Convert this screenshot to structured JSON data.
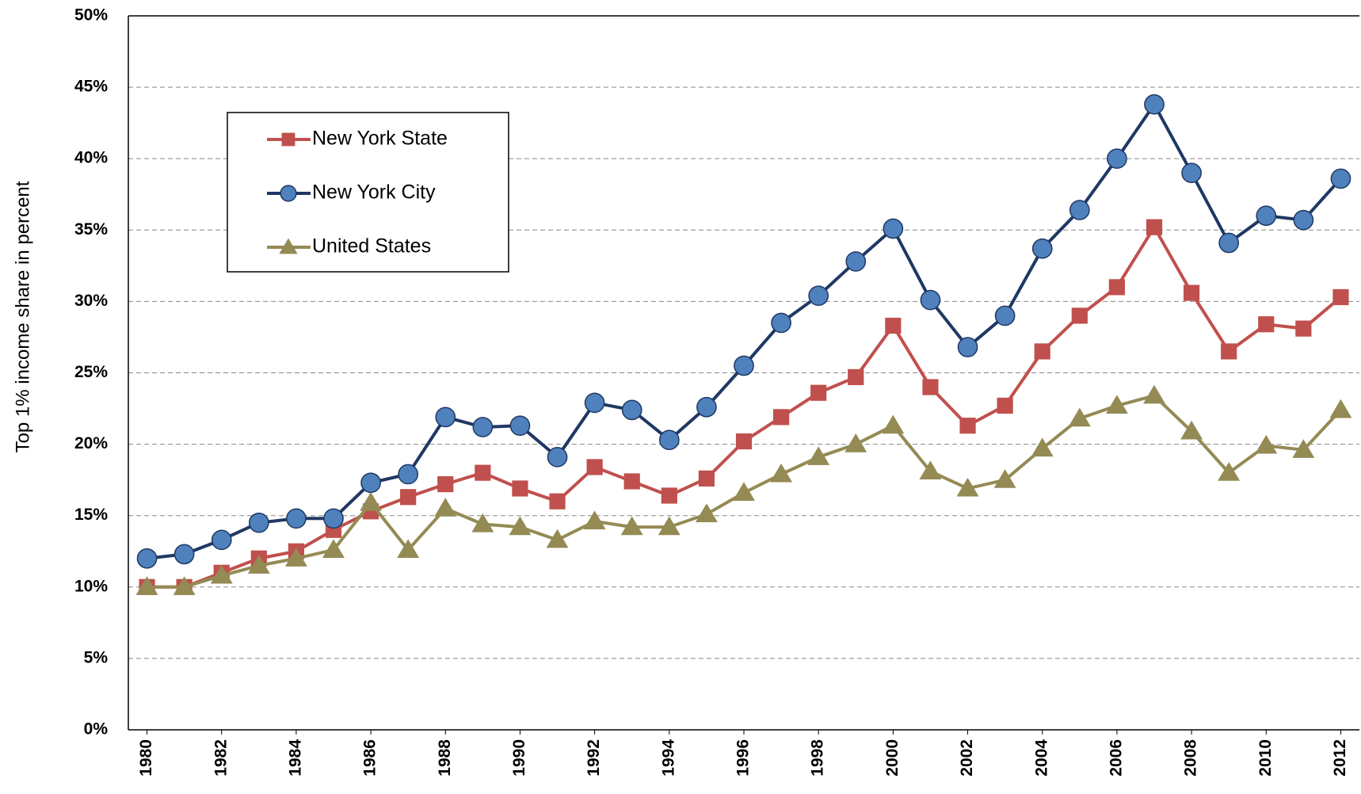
{
  "chart_data": {
    "type": "line",
    "y_label": "Top 1% income share in percent",
    "x": [
      1980,
      1981,
      1982,
      1983,
      1984,
      1985,
      1986,
      1987,
      1988,
      1989,
      1990,
      1991,
      1992,
      1993,
      1994,
      1995,
      1996,
      1997,
      1998,
      1999,
      2000,
      2001,
      2002,
      2003,
      2004,
      2005,
      2006,
      2007,
      2008,
      2009,
      2010,
      2011,
      2012
    ],
    "xlim": [
      1979.5,
      2012.5
    ],
    "xticks": [
      1980,
      1982,
      1984,
      1986,
      1988,
      1990,
      1992,
      1994,
      1996,
      1998,
      2000,
      2002,
      2004,
      2006,
      2008,
      2010,
      2012
    ],
    "ylim": [
      0,
      50
    ],
    "yticks": [
      {
        "value": 0,
        "label": "0%"
      },
      {
        "value": 5,
        "label": "5%"
      },
      {
        "value": 10,
        "label": "10%"
      },
      {
        "value": 15,
        "label": "15%"
      },
      {
        "value": 20,
        "label": "20%"
      },
      {
        "value": 25,
        "label": "25%"
      },
      {
        "value": 30,
        "label": "30%"
      },
      {
        "value": 35,
        "label": "35%"
      },
      {
        "value": 40,
        "label": "40%"
      },
      {
        "value": 45,
        "label": "45%"
      },
      {
        "value": 50,
        "label": "50%"
      }
    ],
    "grid": true,
    "legend": "upper left",
    "series": [
      {
        "name": "New York State",
        "color": "#c0504d",
        "marker": "square",
        "marker_color": "#c0504d",
        "values": [
          10.0,
          10.0,
          11.0,
          12.0,
          12.5,
          14.0,
          15.3,
          16.3,
          17.2,
          18.0,
          16.9,
          16.0,
          18.4,
          17.4,
          16.4,
          17.6,
          20.2,
          21.9,
          23.6,
          24.7,
          28.3,
          24.0,
          21.3,
          22.7,
          26.5,
          29.0,
          31.0,
          35.2,
          30.6,
          26.5,
          28.4,
          28.1,
          30.3
        ]
      },
      {
        "name": "New York City",
        "color": "#1f3864",
        "marker": "circle",
        "marker_color": "#4f81bd",
        "values": [
          12.0,
          12.3,
          13.3,
          14.5,
          14.8,
          14.8,
          17.3,
          17.9,
          21.9,
          21.2,
          21.3,
          19.1,
          22.9,
          22.4,
          20.3,
          22.6,
          25.5,
          28.5,
          30.4,
          32.8,
          35.1,
          30.1,
          26.8,
          29.0,
          33.7,
          36.4,
          40.0,
          43.8,
          39.0,
          34.1,
          36.0,
          35.7,
          38.6
        ]
      },
      {
        "name": "United States",
        "color": "#948a54",
        "marker": "triangle",
        "marker_color": "#948a54",
        "values": [
          10.0,
          10.0,
          10.8,
          11.5,
          12.0,
          12.6,
          15.9,
          12.6,
          15.5,
          14.4,
          14.2,
          13.3,
          14.6,
          14.2,
          14.2,
          15.1,
          16.6,
          17.9,
          19.1,
          20.0,
          21.3,
          18.1,
          16.9,
          17.5,
          19.7,
          21.8,
          22.7,
          23.4,
          20.9,
          18.0,
          19.9,
          19.6,
          22.4
        ]
      }
    ]
  }
}
